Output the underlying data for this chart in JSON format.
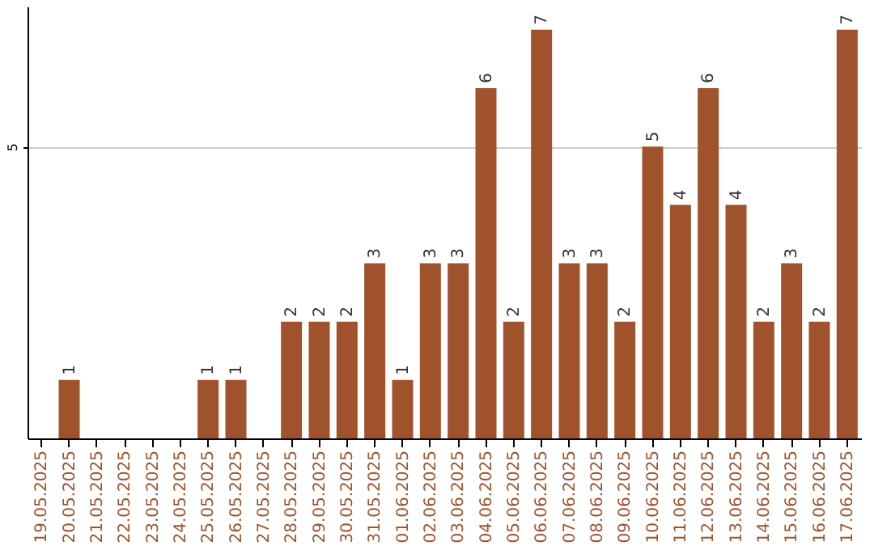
{
  "chart_data": {
    "type": "bar",
    "categories": [
      "19.05.2025",
      "20.05.2025",
      "21.05.2025",
      "22.05.2025",
      "23.05.2025",
      "24.05.2025",
      "25.05.2025",
      "26.05.2025",
      "27.05.2025",
      "28.05.2025",
      "29.05.2025",
      "30.05.2025",
      "31.05.2025",
      "01.06.2025",
      "02.06.2025",
      "03.06.2025",
      "04.06.2025",
      "05.06.2025",
      "06.06.2025",
      "07.06.2025",
      "08.06.2025",
      "09.06.2025",
      "10.06.2025",
      "11.06.2025",
      "12.06.2025",
      "13.06.2025",
      "14.06.2025",
      "15.06.2025",
      "16.06.2025",
      "17.06.2025"
    ],
    "values": [
      0,
      1,
      0,
      0,
      0,
      0,
      1,
      1,
      0,
      2,
      2,
      2,
      3,
      1,
      3,
      3,
      6,
      2,
      7,
      3,
      3,
      2,
      5,
      4,
      6,
      4,
      2,
      3,
      2,
      7
    ],
    "value_labels": [
      null,
      "1",
      null,
      null,
      null,
      null,
      "1",
      "1",
      null,
      "2",
      "2",
      "2",
      "3",
      "1",
      "3",
      "3",
      "6",
      "2",
      "7",
      "3",
      "3",
      "2",
      "5",
      "4",
      "6",
      "4",
      "2",
      "3",
      "2",
      "7"
    ],
    "color": "#a0522d",
    "ylim": [
      0,
      7.4
    ],
    "yticks": [
      5
    ],
    "grid": "y"
  }
}
